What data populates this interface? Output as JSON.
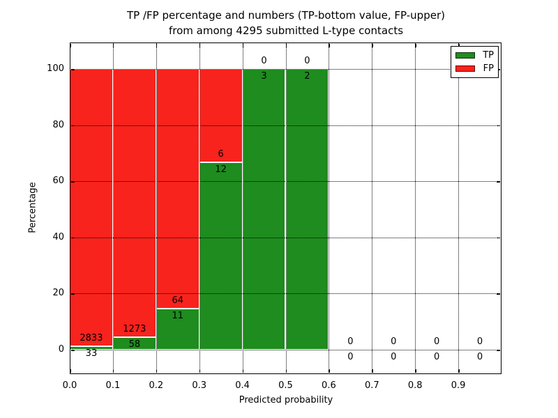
{
  "chart_data": {
    "type": "bar",
    "stacked": true,
    "title": "TP /FP percentage and numbers (TP-bottom value, FP-upper)\nfrom among 4295 submitted L-type contacts",
    "title_line1": "TP /FP percentage and numbers (TP-bottom value, FP-upper)",
    "title_line2": "from among 4295 submitted L-type contacts",
    "xlabel": "Predicted probability",
    "ylabel": "Percentage",
    "xlim": [
      0.0,
      1.0
    ],
    "ylim": [
      -8.7,
      109.4
    ],
    "bin_width": 0.1,
    "grid": true,
    "gridline_style": "dotted",
    "legend_position": "upper right",
    "categories": [
      "0.0-0.1",
      "0.1-0.2",
      "0.2-0.3",
      "0.3-0.4",
      "0.4-0.5",
      "0.5-0.6",
      "0.6-0.7",
      "0.7-0.8",
      "0.8-0.9",
      "0.9-1.0"
    ],
    "x_tick_labels": [
      "0.0",
      "0.1",
      "0.2",
      "0.3",
      "0.4",
      "0.5",
      "0.6",
      "0.7",
      "0.8",
      "0.9"
    ],
    "y_tick_labels": [
      "0",
      "20",
      "40",
      "60",
      "80",
      "100"
    ],
    "y_tick_values": [
      0,
      20,
      40,
      60,
      80,
      100
    ],
    "series": [
      {
        "name": "TP",
        "color": "#1e8c1e",
        "counts": [
          33,
          58,
          11,
          12,
          3,
          2,
          0,
          0,
          0,
          0
        ],
        "pct": [
          1.2,
          4.4,
          14.7,
          66.7,
          100,
          100,
          0,
          0,
          0,
          0
        ]
      },
      {
        "name": "FP",
        "color": "#f8231d",
        "counts": [
          2833,
          1273,
          64,
          6,
          0,
          0,
          0,
          0,
          0,
          0
        ],
        "pct": [
          98.8,
          95.6,
          85.3,
          33.3,
          0,
          0,
          0,
          0,
          0,
          0
        ]
      }
    ],
    "legend": [
      {
        "label": "TP",
        "color": "#1e8c1e"
      },
      {
        "label": "FP",
        "color": "#f8231d"
      }
    ]
  }
}
